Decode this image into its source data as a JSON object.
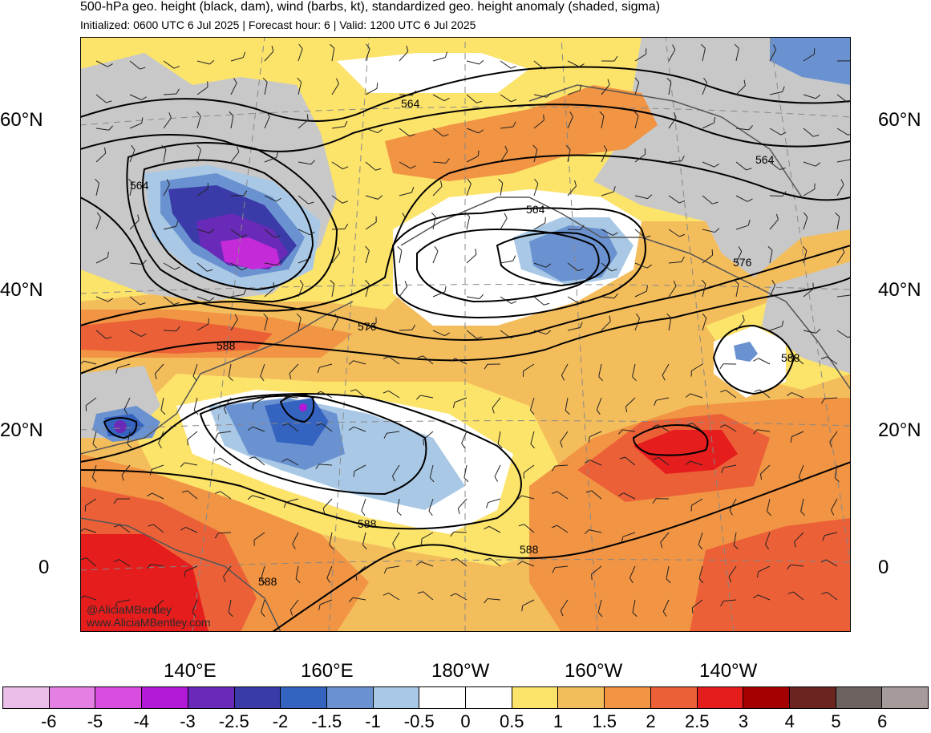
{
  "header": {
    "title": "500-hPa geo. height (black, dam), wind (barbs, kt), standardized geo. height anomaly (shaded, sigma)",
    "subtitle": "Initialized: 0600 UTC 6 Jul 2025 | Forecast hour: 6 | Valid: 1200 UTC 6 Jul 2025"
  },
  "axes": {
    "lat_left": [
      "60°N",
      "40°N",
      "20°N",
      "0"
    ],
    "lat_right": [
      "60°N",
      "40°N",
      "20°N",
      "0"
    ],
    "lon_bottom": [
      "140°E",
      "160°E",
      "180°W",
      "160°W",
      "140°W"
    ]
  },
  "contour_labels": [
    "564",
    "564",
    "564",
    "564",
    "576",
    "576",
    "588",
    "588",
    "588",
    "588",
    "588"
  ],
  "credits": {
    "handle": "@AliciaMBentley",
    "website": "www.AliciaMBentley.com"
  },
  "colorbar": {
    "colors": [
      "#ebbde9",
      "#e47fe4",
      "#d94ee0",
      "#b21ad8",
      "#6a2ab8",
      "#3a3aa8",
      "#3563c0",
      "#6a92d0",
      "#a8c8e6",
      "#ffffff",
      "#ffffff",
      "#fce36a",
      "#f4bd5c",
      "#f19443",
      "#ec6038",
      "#e51d1d",
      "#a50000",
      "#6b2420",
      "#6b6260",
      "#a69b9b"
    ],
    "labels": [
      "-6",
      "-5",
      "-4",
      "-3",
      "-2.5",
      "-2",
      "-1.5",
      "-1",
      "-0.5",
      "0",
      "0.5",
      "1",
      "1.5",
      "2",
      "2.5",
      "3",
      "4",
      "5",
      "6"
    ]
  }
}
